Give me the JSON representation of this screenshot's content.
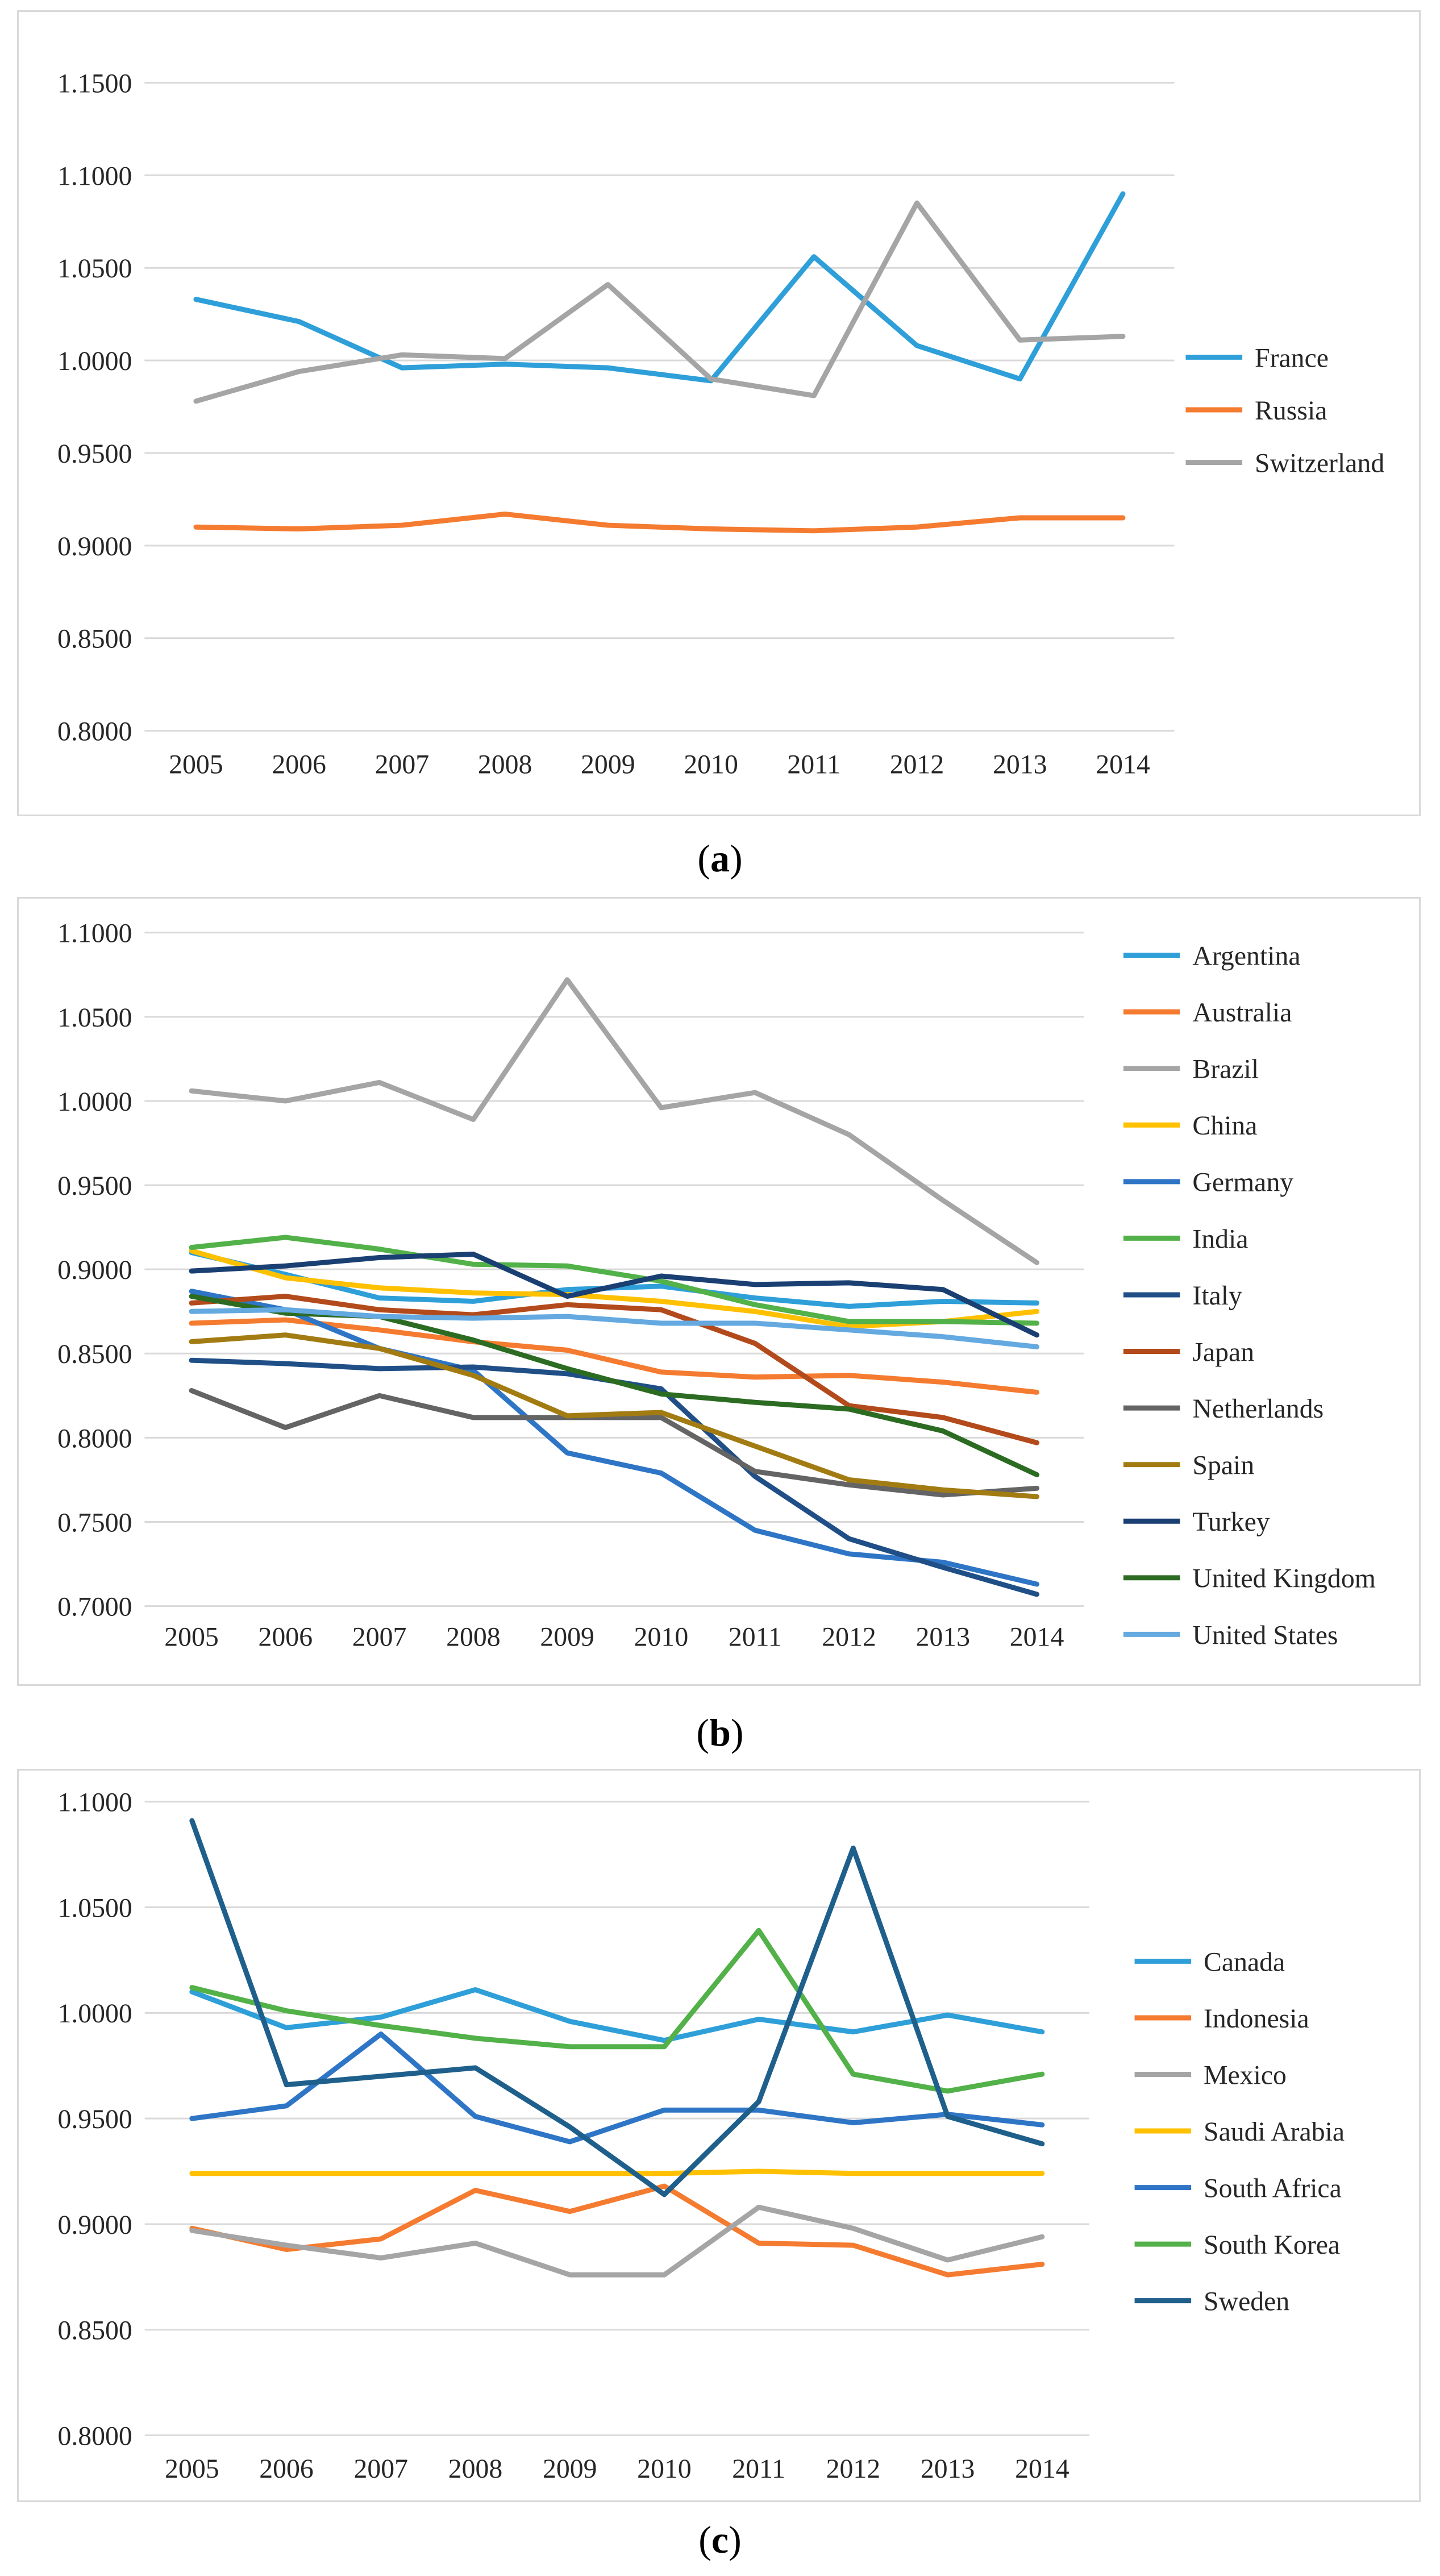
{
  "chart_data": [
    {
      "type": "line",
      "id": "a",
      "caption_open": "(",
      "caption_label": "a",
      "caption_close": ")",
      "categories": [
        "2005",
        "2006",
        "2007",
        "2008",
        "2009",
        "2010",
        "2011",
        "2012",
        "2013",
        "2014"
      ],
      "ylim": [
        0.8,
        1.15
      ],
      "yticks": [
        "0.8000",
        "0.8500",
        "0.9000",
        "0.9500",
        "1.0000",
        "1.0500",
        "1.1000",
        "1.1500"
      ],
      "grid": true,
      "legend": "right",
      "series": [
        {
          "name": "France",
          "color": "#2E9FD8",
          "values": [
            1.033,
            1.021,
            0.996,
            0.998,
            0.996,
            0.989,
            1.056,
            1.008,
            0.99,
            1.09
          ]
        },
        {
          "name": "Russia",
          "color": "#F47B30",
          "values": [
            0.91,
            0.909,
            0.911,
            0.917,
            0.911,
            0.909,
            0.908,
            0.91,
            0.915,
            0.915
          ]
        },
        {
          "name": "Switzerland",
          "color": "#A5A5A5",
          "values": [
            0.978,
            0.994,
            1.003,
            1.001,
            1.041,
            0.99,
            0.981,
            1.085,
            1.011,
            1.013
          ]
        }
      ]
    },
    {
      "type": "line",
      "id": "b",
      "caption_open": "(",
      "caption_label": "b",
      "caption_close": ")",
      "categories": [
        "2005",
        "2006",
        "2007",
        "2008",
        "2009",
        "2010",
        "2011",
        "2012",
        "2013",
        "2014"
      ],
      "ylim": [
        0.7,
        1.1
      ],
      "yticks": [
        "0.7000",
        "0.7500",
        "0.8000",
        "0.8500",
        "0.9000",
        "0.9500",
        "1.0000",
        "1.0500",
        "1.1000"
      ],
      "grid": true,
      "legend": "right",
      "series": [
        {
          "name": "Argentina",
          "color": "#2E9FD8",
          "values": [
            0.91,
            0.897,
            0.883,
            0.881,
            0.888,
            0.89,
            0.883,
            0.878,
            0.881,
            0.88
          ]
        },
        {
          "name": "Australia",
          "color": "#F47B30",
          "values": [
            0.868,
            0.87,
            0.864,
            0.857,
            0.852,
            0.839,
            0.836,
            0.837,
            0.833,
            0.827
          ]
        },
        {
          "name": "Brazil",
          "color": "#A5A5A5",
          "values": [
            1.006,
            1.0,
            1.011,
            0.989,
            1.072,
            0.996,
            1.005,
            0.98,
            0.941,
            0.904
          ]
        },
        {
          "name": "China",
          "color": "#FFC000",
          "values": [
            0.911,
            0.895,
            0.889,
            0.886,
            0.885,
            0.881,
            0.875,
            0.866,
            0.869,
            0.875
          ]
        },
        {
          "name": "Germany",
          "color": "#2E75C6",
          "values": [
            0.887,
            0.876,
            0.853,
            0.84,
            0.791,
            0.779,
            0.745,
            0.731,
            0.726,
            0.713
          ]
        },
        {
          "name": "India",
          "color": "#52B148",
          "values": [
            0.913,
            0.919,
            0.912,
            0.903,
            0.902,
            0.893,
            0.879,
            0.869,
            0.869,
            0.868
          ]
        },
        {
          "name": "Italy",
          "color": "#1F4F86",
          "values": [
            0.846,
            0.844,
            0.841,
            0.842,
            0.838,
            0.829,
            0.777,
            0.74,
            0.723,
            0.707
          ]
        },
        {
          "name": "Japan",
          "color": "#B34A1B",
          "values": [
            0.88,
            0.884,
            0.876,
            0.873,
            0.879,
            0.876,
            0.856,
            0.819,
            0.812,
            0.797
          ]
        },
        {
          "name": "Netherlands",
          "color": "#646464",
          "values": [
            0.828,
            0.806,
            0.825,
            0.812,
            0.812,
            0.812,
            0.78,
            0.772,
            0.766,
            0.77
          ]
        },
        {
          "name": "Spain",
          "color": "#A27C12",
          "values": [
            0.857,
            0.861,
            0.853,
            0.837,
            0.813,
            0.815,
            0.795,
            0.775,
            0.769,
            0.765
          ]
        },
        {
          "name": "Turkey",
          "color": "#1A3F72",
          "values": [
            0.899,
            0.902,
            0.907,
            0.909,
            0.884,
            0.896,
            0.891,
            0.892,
            0.888,
            0.861
          ]
        },
        {
          "name": "United Kingdom",
          "color": "#2C6B22",
          "values": [
            0.884,
            0.874,
            0.872,
            0.858,
            0.841,
            0.826,
            0.821,
            0.817,
            0.804,
            0.778
          ]
        },
        {
          "name": "United States",
          "color": "#64A9E0",
          "values": [
            0.875,
            0.876,
            0.872,
            0.871,
            0.872,
            0.868,
            0.868,
            0.864,
            0.86,
            0.854
          ]
        }
      ]
    },
    {
      "type": "line",
      "id": "c",
      "caption_open": "(",
      "caption_label": "c",
      "caption_close": ")",
      "categories": [
        "2005",
        "2006",
        "2007",
        "2008",
        "2009",
        "2010",
        "2011",
        "2012",
        "2013",
        "2014"
      ],
      "ylim": [
        0.8,
        1.1
      ],
      "yticks": [
        "0.8000",
        "0.8500",
        "0.9000",
        "0.9500",
        "1.0000",
        "1.0500",
        "1.1000"
      ],
      "grid": true,
      "legend": "right",
      "series": [
        {
          "name": "Canada",
          "color": "#2E9FD8",
          "values": [
            1.01,
            0.993,
            0.998,
            1.011,
            0.996,
            0.987,
            0.997,
            0.991,
            0.999,
            0.991
          ]
        },
        {
          "name": "Indonesia",
          "color": "#F47B30",
          "values": [
            0.898,
            0.888,
            0.893,
            0.916,
            0.906,
            0.918,
            0.891,
            0.89,
            0.876,
            0.881
          ]
        },
        {
          "name": "Mexico",
          "color": "#A5A5A5",
          "values": [
            0.897,
            0.89,
            0.884,
            0.891,
            0.876,
            0.876,
            0.908,
            0.898,
            0.883,
            0.894
          ]
        },
        {
          "name": "Saudi Arabia",
          "color": "#FFC000",
          "values": [
            0.924,
            0.924,
            0.924,
            0.924,
            0.924,
            0.924,
            0.925,
            0.924,
            0.924,
            0.924
          ]
        },
        {
          "name": "South Africa",
          "color": "#2E75C6",
          "values": [
            0.95,
            0.956,
            0.99,
            0.951,
            0.939,
            0.954,
            0.954,
            0.948,
            0.952,
            0.947
          ]
        },
        {
          "name": "South Korea",
          "color": "#52B148",
          "values": [
            1.012,
            1.001,
            0.994,
            0.988,
            0.984,
            0.984,
            1.039,
            0.971,
            0.963,
            0.971
          ]
        },
        {
          "name": "Sweden",
          "color": "#1F5F8B",
          "values": [
            1.091,
            0.966,
            0.97,
            0.974,
            0.946,
            0.914,
            0.958,
            1.078,
            0.951,
            0.938
          ]
        }
      ]
    }
  ]
}
